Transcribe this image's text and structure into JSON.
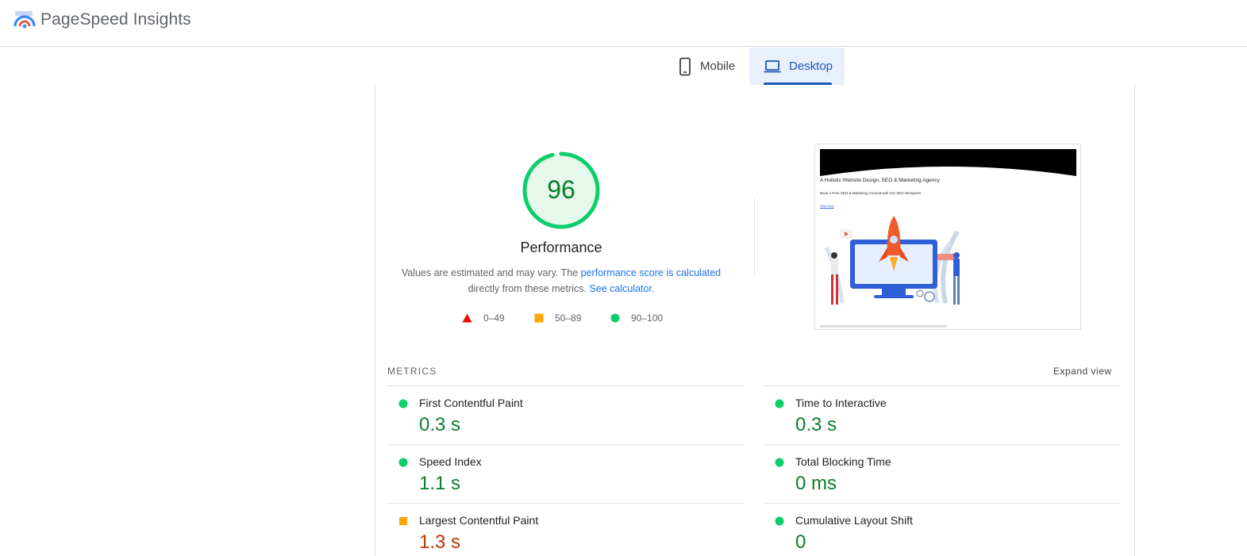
{
  "header": {
    "app_title": "PageSpeed Insights",
    "logo_icon": "pagespeed-logo-icon"
  },
  "tabs": [
    {
      "label": "Mobile",
      "icon": "phone-icon",
      "selected": false
    },
    {
      "label": "Desktop",
      "icon": "laptop-icon",
      "selected": true
    }
  ],
  "score": {
    "value": "96",
    "fraction": 0.96,
    "label": "Performance",
    "note_prefix": "Values are estimated and may vary. The ",
    "note_link1": "performance score is calculated",
    "note_middle": " directly from these metrics. ",
    "note_link2": "See calculator."
  },
  "legend": [
    {
      "range": "0–49",
      "shape": "triangle",
      "color": "#eb0f00"
    },
    {
      "range": "50–89",
      "shape": "square",
      "color": "#ffa400"
    },
    {
      "range": "90–100",
      "shape": "circle",
      "color": "#0cce6b"
    }
  ],
  "screenshot": {
    "headline": "A Holistic Website Design, SEO & Marketing Agency",
    "sub": "Book A Free SEO & Marketing Consult with Our SEO Whisperer",
    "link": "Start Now"
  },
  "metrics": {
    "title": "METRICS",
    "expand_label": "Expand view",
    "items": [
      {
        "label": "First Contentful Paint",
        "value": "0.3 s",
        "rating": "good"
      },
      {
        "label": "Time to Interactive",
        "value": "0.3 s",
        "rating": "good"
      },
      {
        "label": "Speed Index",
        "value": "1.1 s",
        "rating": "good"
      },
      {
        "label": "Total Blocking Time",
        "value": "0 ms",
        "rating": "good"
      },
      {
        "label": "Largest Contentful Paint",
        "value": "1.3 s",
        "rating": "average"
      },
      {
        "label": "Cumulative Layout Shift",
        "value": "0",
        "rating": "good"
      }
    ]
  },
  "colors": {
    "good": "#0cce6b",
    "average": "#ffa400",
    "poor": "#eb0f00",
    "accent": "#1a73e8"
  }
}
